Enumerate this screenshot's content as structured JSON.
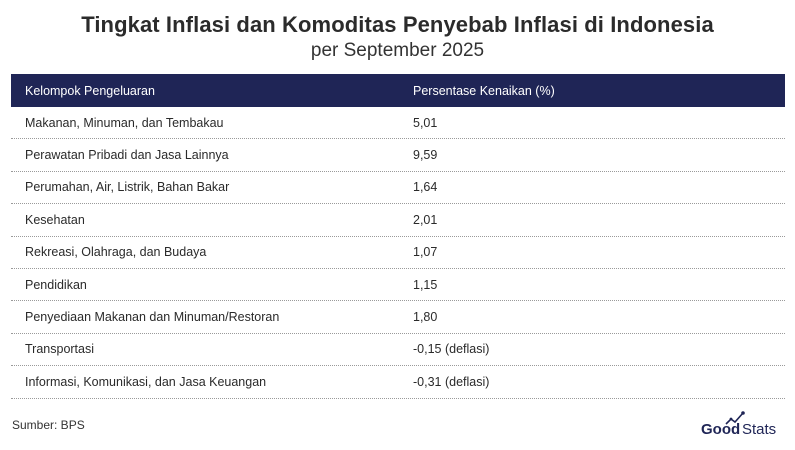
{
  "title": "Tingkat Inflasi dan Komoditas Penyebab Inflasi di Indonesia",
  "subtitle": "per September 2025",
  "chart_data": {
    "type": "table",
    "columns": [
      "Kelompok Pengeluaran",
      "Persentase Kenaikan (%)"
    ],
    "rows": [
      {
        "category": "Makanan, Minuman, dan Tembakau",
        "value": "5,01"
      },
      {
        "category": "Perawatan Pribadi dan Jasa Lainnya",
        "value": "9,59"
      },
      {
        "category": "Perumahan, Air, Listrik, Bahan Bakar",
        "value": "1,64"
      },
      {
        "category": "Kesehatan",
        "value": "2,01"
      },
      {
        "category": "Rekreasi, Olahraga, dan Budaya",
        "value": "1,07"
      },
      {
        "category": "Pendidikan",
        "value": "1,15"
      },
      {
        "category": "Penyediaan Makanan dan Minuman/Restoran",
        "value": "1,80"
      },
      {
        "category": "Transportasi",
        "value": "-0,15 (deflasi)"
      },
      {
        "category": "Informasi, Komunikasi, dan Jasa Keuangan",
        "value": "-0,31 (deflasi)"
      }
    ]
  },
  "source": "Sumber: BPS",
  "logo": {
    "text_good": "Good",
    "text_stats": "Stats",
    "icon": "chart-arrow-icon"
  },
  "colors": {
    "header_bg": "#1f2556",
    "header_text": "#ffffff",
    "logo": "#1f2556"
  }
}
